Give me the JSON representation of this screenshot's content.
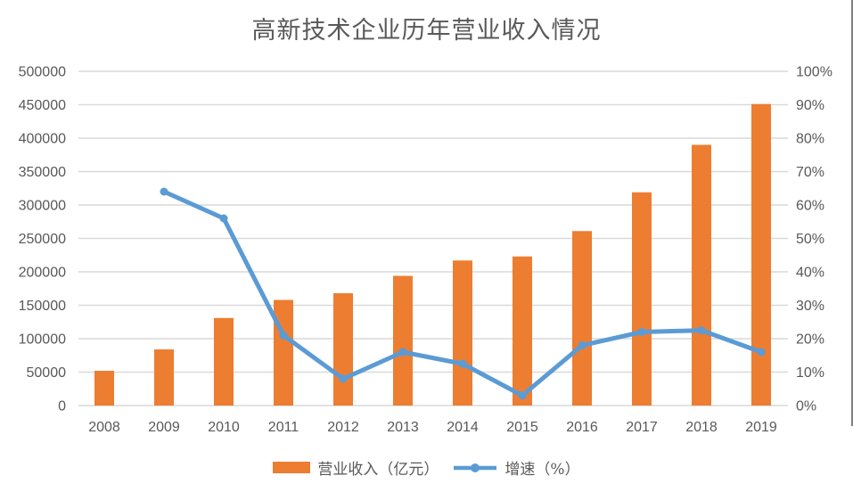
{
  "chart_data": {
    "type": "combo-bar-line",
    "title": "高新技术企业历年营业收入情况",
    "categories": [
      "2008",
      "2009",
      "2010",
      "2011",
      "2012",
      "2013",
      "2014",
      "2015",
      "2016",
      "2017",
      "2018",
      "2019"
    ],
    "series": [
      {
        "name": "营业收入（亿元）",
        "type": "bar",
        "axis": "left",
        "color": "#ED7D31",
        "values": [
          52000,
          84000,
          131000,
          158000,
          168000,
          194000,
          217000,
          223000,
          261000,
          319000,
          390000,
          451000
        ]
      },
      {
        "name": "增速（%）",
        "type": "line",
        "axis": "right",
        "color": "#5B9BD5",
        "values": [
          null,
          64,
          56,
          21,
          8,
          16,
          12.5,
          3,
          18,
          22,
          22.5,
          16
        ]
      }
    ],
    "left_axis": {
      "min": 0,
      "max": 500000,
      "step": 50000,
      "tick_labels": [
        "0",
        "50000",
        "100000",
        "150000",
        "200000",
        "250000",
        "300000",
        "350000",
        "400000",
        "450000",
        "500000"
      ]
    },
    "right_axis": {
      "min": 0,
      "max": 100,
      "step": 10,
      "tick_labels": [
        "0%",
        "10%",
        "20%",
        "30%",
        "40%",
        "50%",
        "60%",
        "70%",
        "80%",
        "90%",
        "100%"
      ]
    },
    "grid": true,
    "legend_position": "bottom"
  },
  "colors": {
    "bar": "#ED7D31",
    "line": "#5B9BD5",
    "grid": "#D9D9D9",
    "axis_text": "#595959",
    "title_text": "#595959",
    "border": "#7F7F7F"
  }
}
